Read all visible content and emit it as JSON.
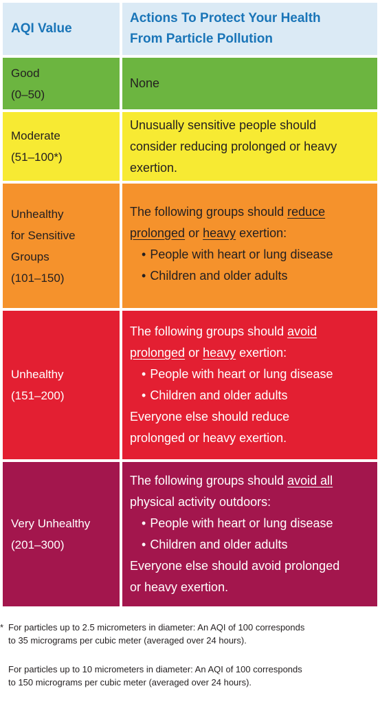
{
  "header": {
    "col1": "AQI Value",
    "col2_line1": "Actions To Protect Your Health",
    "col2_line2": "From Particle Pollution"
  },
  "colors": {
    "header": "#dbeaf5",
    "good": "#6cb540",
    "moderate": "#f7ea33",
    "usg": "#f5922c",
    "unhealthy": "#e31f32",
    "very_unhealthy": "#a3164d",
    "header_text": "#1a75b8"
  },
  "rows": {
    "good": {
      "label1": "Good",
      "label2": "(0–50)",
      "action": "None"
    },
    "moderate": {
      "label1": "Moderate",
      "label2": "(51–100*)",
      "action1": "Unusually sensitive people should",
      "action2": "consider reducing prolonged or heavy",
      "action3": "exertion."
    },
    "usg": {
      "label1": "Unhealthy",
      "label2": "for Sensitive",
      "label3": "Groups",
      "label4": "(101–150)",
      "intro_a": "The following groups should ",
      "intro_b": "reduce",
      "intro_c": "prolonged",
      "intro_d": " or ",
      "intro_e": "heavy",
      "intro_f": " exertion:",
      "bullet1": "People with heart or lung disease",
      "bullet2": "Children and older adults"
    },
    "unhealthy": {
      "label1": "Unhealthy",
      "label2": "(151–200)",
      "intro_a": "The following groups should ",
      "intro_b": "avoid",
      "intro_c": "prolonged",
      "intro_d": " or ",
      "intro_e": "heavy",
      "intro_f": " exertion:",
      "bullet1": "People with heart or lung disease",
      "bullet2": "Children and older adults",
      "closing1": "Everyone else should reduce",
      "closing2": "prolonged or heavy exertion."
    },
    "very_unhealthy": {
      "label1": "Very Unhealthy",
      "label2": "(201–300)",
      "intro_a": "The following groups should ",
      "intro_b": "avoid all",
      "intro_c": "physical activity outdoors:",
      "bullet1": "People with heart or lung disease",
      "bullet2": "Children and older adults",
      "closing1": "Everyone else should avoid prolonged",
      "closing2": "or heavy exertion."
    }
  },
  "footnotes": {
    "star": "*",
    "note1_line1": "For particles up to 2.5 micrometers in diameter: An AQI of 100 corresponds",
    "note1_line2": "to 35 micrograms per cubic meter (averaged over 24 hours).",
    "note2_line1": "For particles up to 10 micrometers in diameter: An AQI of 100 corresponds",
    "note2_line2": "to 150 micrograms per cubic meter (averaged over 24 hours)."
  }
}
